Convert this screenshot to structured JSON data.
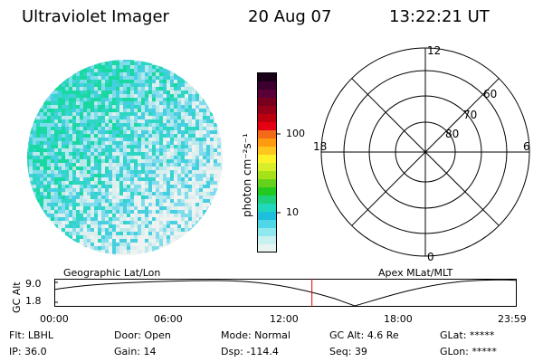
{
  "header": {
    "title": "Ultraviolet Imager",
    "date": "20 Aug 07",
    "time": "13:22:21 UT"
  },
  "colorbar": {
    "unit_label": "photon cm⁻²s⁻¹",
    "tick_labels": [
      "100",
      "10"
    ],
    "colors": [
      "#1a0016",
      "#3b0030",
      "#5a0038",
      "#78001f",
      "#960019",
      "#bd0010",
      "#e60014",
      "#f36a18",
      "#ff9b10",
      "#ffc61f",
      "#fdf227",
      "#d8ee28",
      "#a6e21a",
      "#64d21a",
      "#24c91f",
      "#1fd07a",
      "#20d8bc",
      "#1ebfdd",
      "#4fd7e8",
      "#8fe8ee",
      "#c8f0ef",
      "#e8f4f2"
    ]
  },
  "polar_grid": {
    "ring_labels": [
      "80",
      "70",
      "60"
    ],
    "mlt_labels": {
      "top": "12",
      "bottom": "0",
      "left": "18",
      "right": "6"
    }
  },
  "timeline": {
    "left_label": "Geographic Lat/Lon",
    "right_label": "Apex MLat/MLT",
    "y_axis_label": "GC Alt",
    "y_ticks": [
      "9.0",
      "1.8"
    ],
    "x_ticks": [
      "00:00",
      "06:00",
      "12:00",
      "18:00",
      "23:59"
    ],
    "current_time_fraction": 0.5573,
    "marker_color": "#e00000"
  },
  "info": {
    "row1": [
      "Flt: LBHL",
      "Door: Open",
      "Mode: Normal",
      "GC Alt: 4.6 Re",
      "GLat: *****"
    ],
    "row2": [
      "IP: 36.0",
      "Gain: 14",
      "Dsp: -114.4",
      "Seq: 39",
      "GLon: *****"
    ]
  },
  "image_palette": [
    "#19d8a0",
    "#2ed6c4",
    "#45cfe0",
    "#7fdcec",
    "#b9e8ec",
    "#dceeee",
    "#eef2f0"
  ]
}
